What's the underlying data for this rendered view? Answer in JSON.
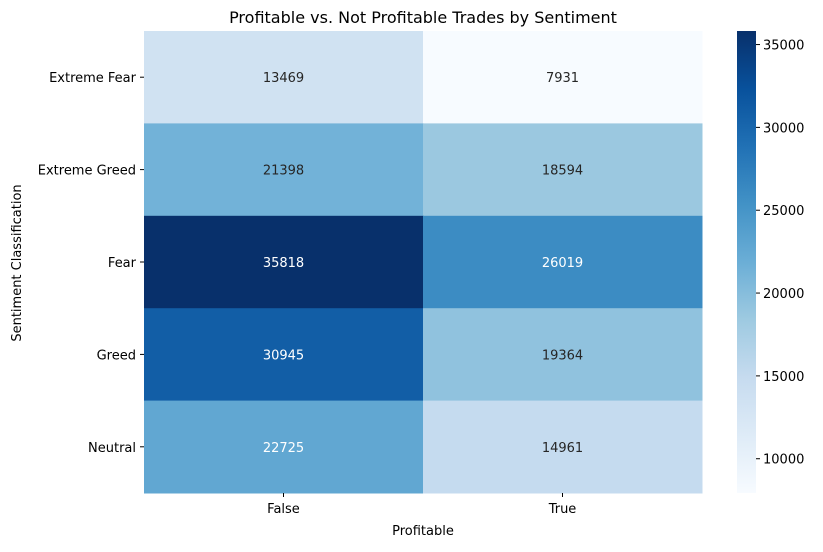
{
  "chart_data": {
    "type": "heatmap",
    "title": "Profitable vs. Not Profitable Trades by Sentiment",
    "xlabel": "Profitable",
    "ylabel": "Sentiment Classification",
    "x_categories": [
      "False",
      "True"
    ],
    "y_categories": [
      "Extreme Fear",
      "Extreme Greed",
      "Fear",
      "Greed",
      "Neutral"
    ],
    "values": [
      [
        13469,
        7931
      ],
      [
        21398,
        18594
      ],
      [
        35818,
        26019
      ],
      [
        30945,
        19364
      ],
      [
        22725,
        14961
      ]
    ],
    "colormap": "Blues",
    "colorbar": {
      "range": [
        7931,
        35818
      ],
      "ticks": [
        10000,
        15000,
        20000,
        25000,
        30000,
        35000
      ]
    }
  }
}
